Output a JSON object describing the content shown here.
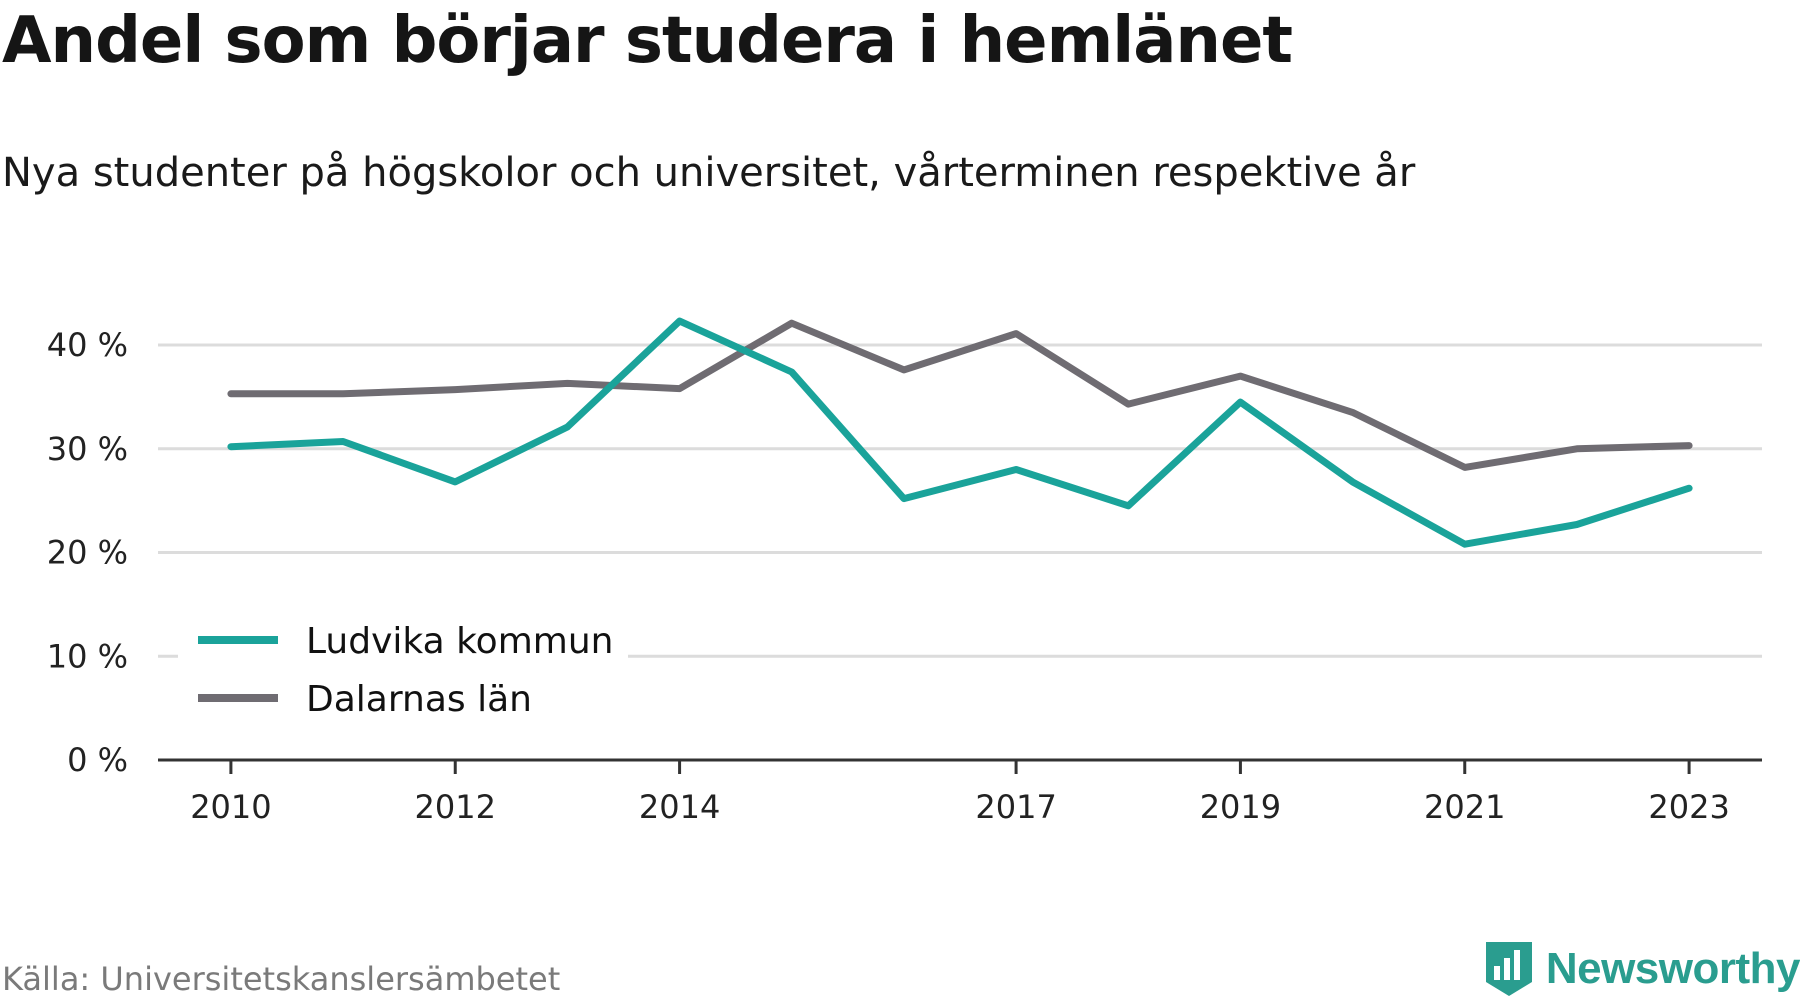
{
  "chart_data": {
    "type": "line",
    "title": "Andel som börjar studera i hemlänet",
    "subtitle": "Nya studenter på högskolor och universitet, vårterminen respektive år",
    "x": [
      2010,
      2011,
      2012,
      2013,
      2014,
      2015,
      2016,
      2017,
      2018,
      2019,
      2020,
      2021,
      2022,
      2023
    ],
    "x_tick_labels": [
      "2010",
      "2012",
      "2014",
      "2017",
      "2019",
      "2021",
      "2023"
    ],
    "x_ticks": [
      2010,
      2012,
      2014,
      2017,
      2019,
      2021,
      2023
    ],
    "y_ticks": [
      0,
      10,
      20,
      30,
      40
    ],
    "y_tick_labels": [
      "0 %",
      "10 %",
      "20 %",
      "30 %",
      "40 %"
    ],
    "ylim": [
      0,
      40
    ],
    "xlim": [
      2009.35,
      2023.65
    ],
    "grid": true,
    "legend_position": "bottom-left",
    "series": [
      {
        "name": "Ludvika kommun",
        "color": "#1aa39a",
        "values": [
          30.2,
          30.7,
          26.8,
          32.1,
          42.3,
          37.4,
          25.2,
          28.0,
          24.5,
          34.5,
          26.8,
          20.8,
          22.7,
          26.2
        ]
      },
      {
        "name": "Dalarnas län",
        "color": "#6f6c72",
        "values": [
          35.3,
          35.3,
          35.7,
          36.3,
          35.8,
          42.1,
          37.6,
          41.1,
          34.3,
          37.0,
          33.5,
          28.2,
          30.0,
          30.3
        ]
      }
    ],
    "source": "Källa: Universitetskanslersämbetet"
  },
  "brand": {
    "name": "Newsworthy",
    "logo_icon": "bar-chart-shield-icon",
    "color": "#2a9d8f"
  }
}
